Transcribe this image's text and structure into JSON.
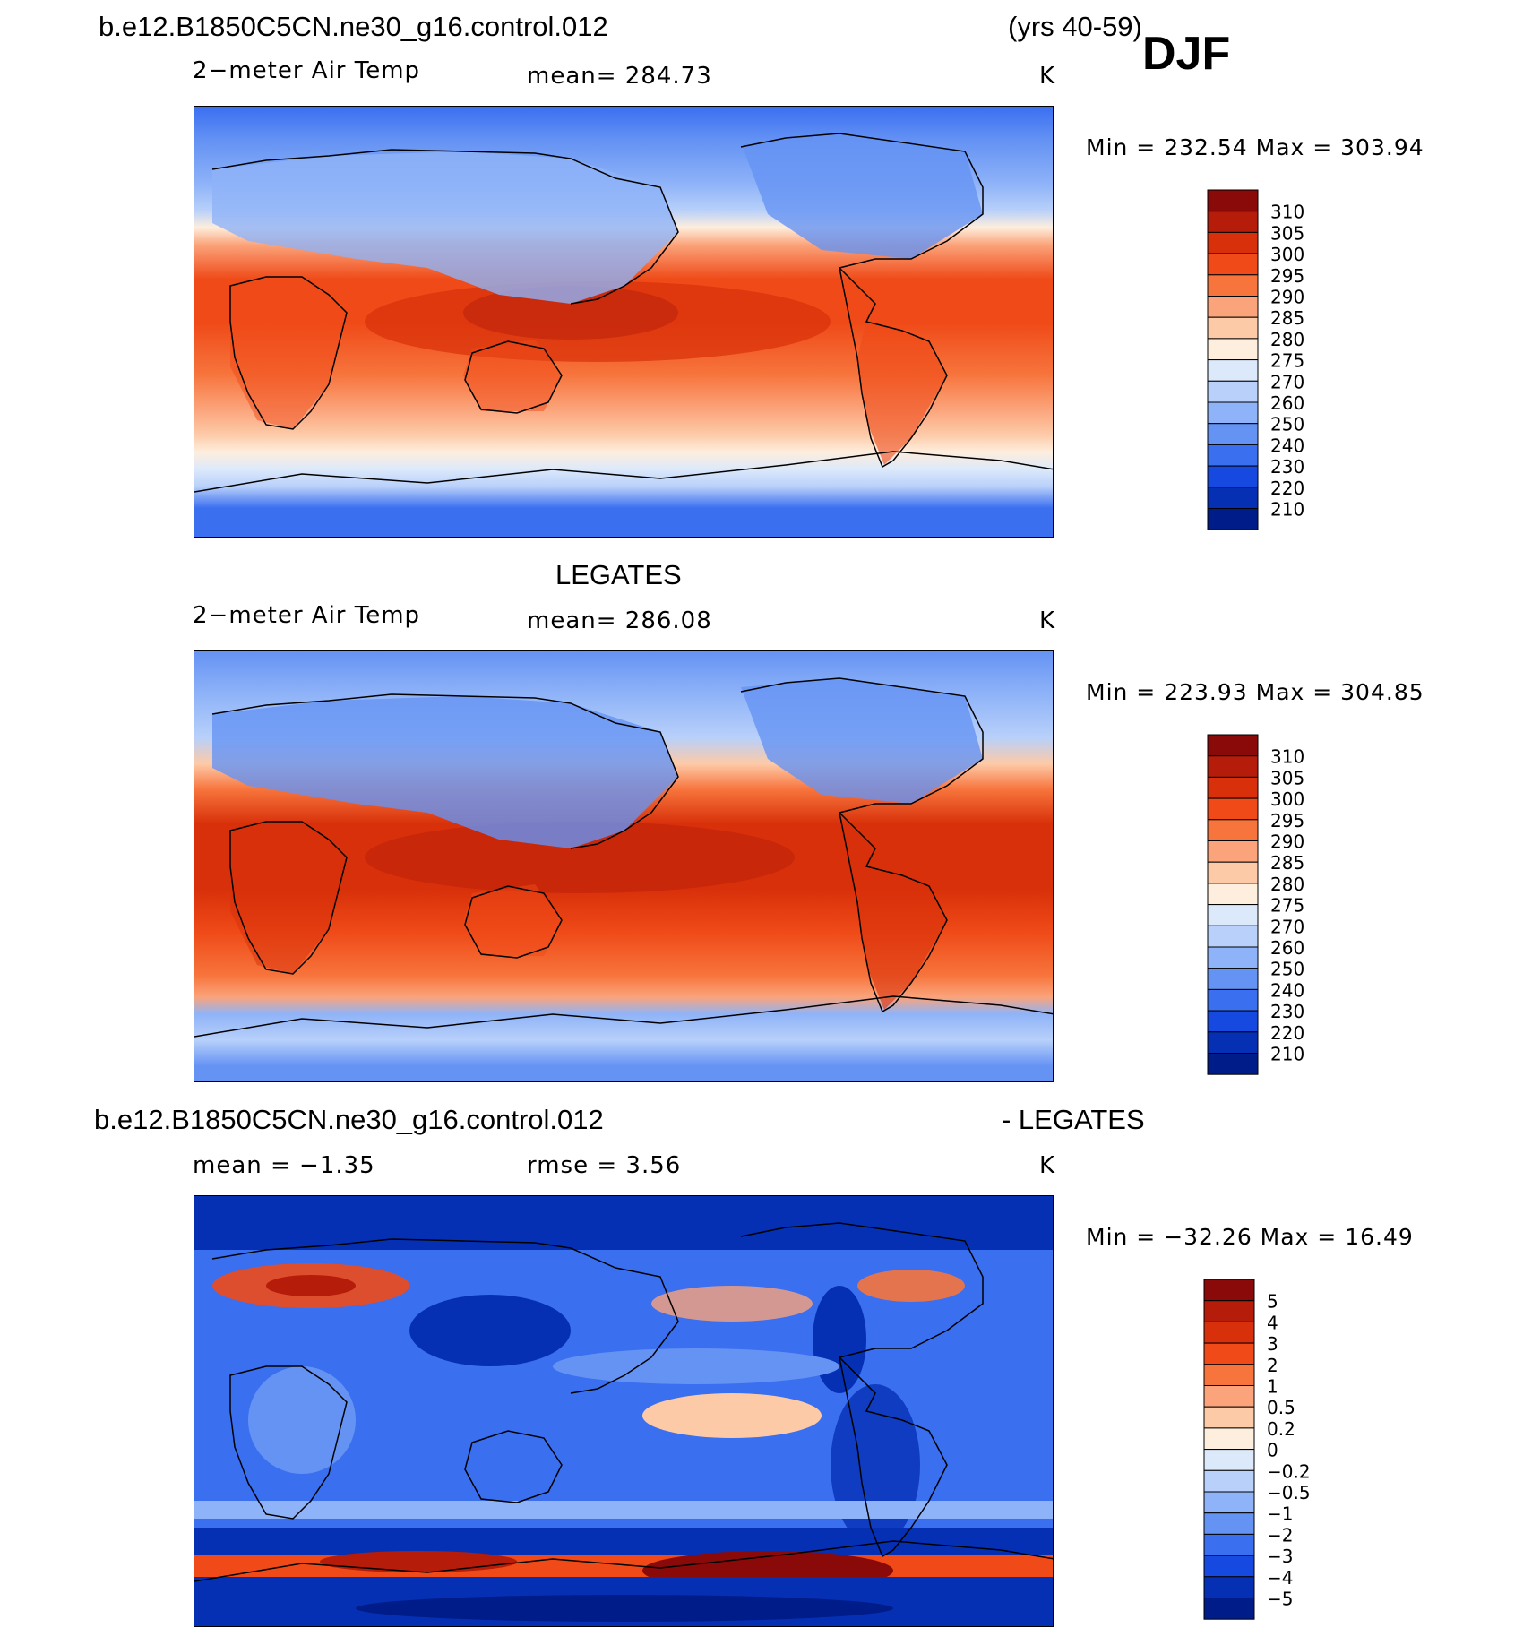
{
  "header": {
    "case": "b.e12.B1850C5CN.ne30_g16.control.012",
    "years": "(yrs 40-59)",
    "season": "DJF"
  },
  "panels": [
    {
      "title": "",
      "variable": "2−meter Air Temp",
      "stat": "mean=  284.73",
      "units": "K",
      "minmax": "Min  =  232.54  Max  =  303.94",
      "colorbar_labels": [
        "310",
        "305",
        "300",
        "295",
        "290",
        "285",
        "280",
        "275",
        "270",
        "260",
        "250",
        "240",
        "230",
        "220",
        "210"
      ]
    },
    {
      "title": "LEGATES",
      "variable": "2−meter Air Temp",
      "stat": "mean=  286.08",
      "units": "K",
      "minmax": "Min  =  223.93  Max  =  304.85",
      "colorbar_labels": [
        "310",
        "305",
        "300",
        "295",
        "290",
        "285",
        "280",
        "275",
        "270",
        "260",
        "250",
        "240",
        "230",
        "220",
        "210"
      ]
    },
    {
      "title_left": "b.e12.B1850C5CN.ne30_g16.control.012",
      "title_right": "- LEGATES",
      "stat_left": "mean  =    −1.35",
      "stat": "rmse  =      3.56",
      "units": "K",
      "minmax": "Min  =  −32.26  Max  =    16.49",
      "colorbar_labels": [
        "5",
        "4",
        "3",
        "2",
        "1",
        "0.5",
        "0.2",
        "0",
        "−0.2",
        "−0.5",
        "−1",
        "−2",
        "−3",
        "−4",
        "−5"
      ]
    }
  ],
  "colors": {
    "scale": [
      "#8a0a0a",
      "#b51d0a",
      "#d8300a",
      "#ef4a18",
      "#f7743c",
      "#fba37a",
      "#fdcaa8",
      "#feeedd",
      "#dce9fb",
      "#b8d0fa",
      "#8fb3f8",
      "#6593f4",
      "#3a6ff0",
      "#1549e0",
      "#0530b4",
      "#001c88"
    ]
  }
}
